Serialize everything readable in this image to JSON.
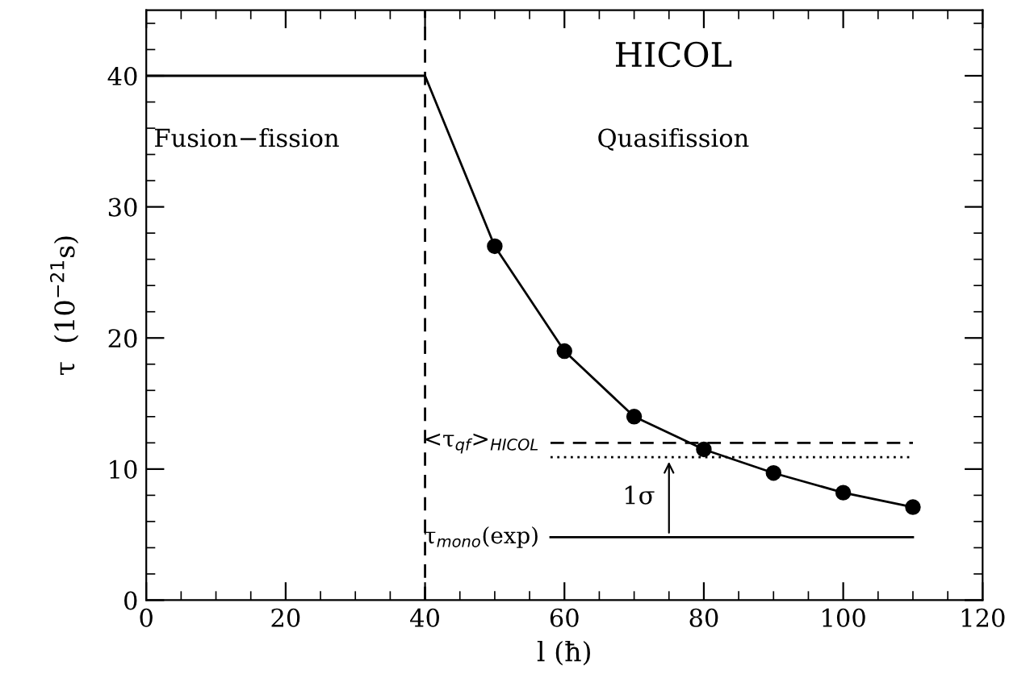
{
  "chart_data": {
    "type": "line",
    "xlabel": "l (ħ)",
    "ylabel": "τ  (10$^{−21}$s)",
    "xlim": [
      0,
      120
    ],
    "ylim": [
      0,
      45
    ],
    "xticks": [
      0,
      20,
      40,
      60,
      80,
      100,
      120
    ],
    "yticks": [
      0,
      10,
      20,
      30,
      40
    ],
    "grid": false,
    "legend": false,
    "color": "#000000",
    "series": [
      {
        "color": "#000000",
        "x": [
          0,
          40,
          50,
          60,
          70,
          80,
          90,
          100,
          110
        ],
        "values": [
          40,
          40,
          27.0,
          19.0,
          14.0,
          11.5,
          9.7,
          8.2,
          7.1
        ],
        "marker": "none",
        "line_style": "solid"
      },
      {
        "type": "scatter",
        "color": "#000000",
        "x": [
          50,
          60,
          70,
          80,
          90,
          100,
          110
        ],
        "values": [
          27.0,
          19.0,
          14.0,
          11.5,
          9.7,
          8.2,
          7.1
        ],
        "marker": "circle"
      },
      {
        "type": "line",
        "name": "<τ$_{qf}$>$_{HICOL}$",
        "color": "#000000",
        "x": [
          58,
          110
        ],
        "values": [
          12.0,
          12.0
        ],
        "marker": "none",
        "line_style": "dashed"
      },
      {
        "type": "line",
        "color": "#000000",
        "x": [
          58,
          110
        ],
        "values": [
          10.9,
          10.9
        ],
        "marker": "none",
        "line_style": "dotted"
      },
      {
        "type": "line",
        "name": "τ$_{mono}$(exp)",
        "color": "#000000",
        "x": [
          58,
          110
        ],
        "values": [
          4.8,
          4.8
        ],
        "marker": "none",
        "line_style": "solid"
      }
    ],
    "ref_lines": [
      {
        "axis": "x",
        "value": 40,
        "line_style": "dashed",
        "color": "#000000"
      }
    ],
    "annotations": [
      "HICOL",
      "Fusion−fission",
      "Quasifission",
      {
        "text": "1σ",
        "x": 75,
        "y": 10.9
      }
    ]
  }
}
